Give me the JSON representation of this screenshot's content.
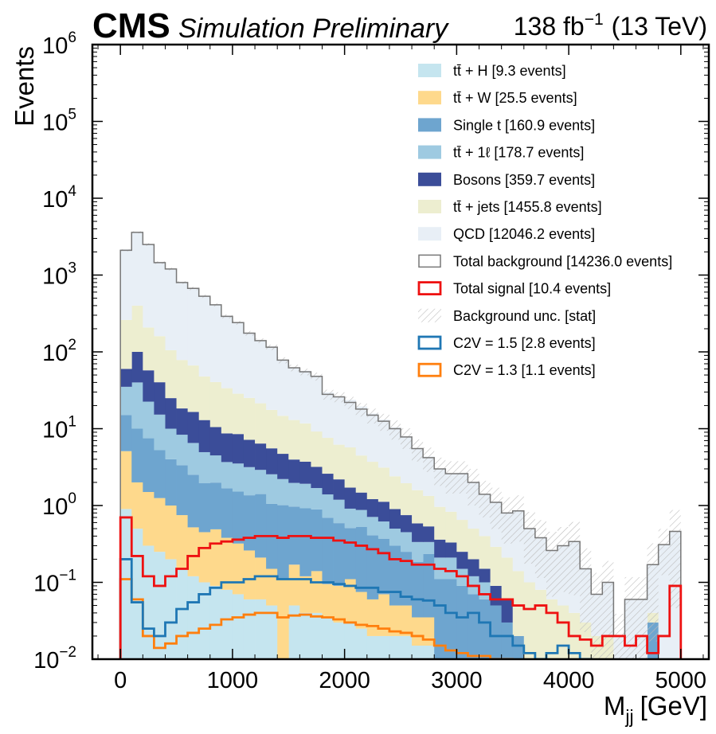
{
  "chart_data": {
    "type": "bar",
    "stacked": true,
    "experiment": "CMS",
    "subtitle": "Simulation Preliminary",
    "lumi": {
      "value": "138 fb",
      "exp": "−1",
      "energy": "(13 TeV)"
    },
    "ylabel": "Events",
    "xlabel": {
      "main": "M",
      "sub": "jj",
      "unit": "[GeV]"
    },
    "xlim": [
      -250,
      5250
    ],
    "ylim": [
      0.01,
      1000000
    ],
    "ylog": true,
    "xticks": [
      0,
      1000,
      2000,
      3000,
      4000,
      5000
    ],
    "yticks": [
      {
        "value": 0.01,
        "base": "10",
        "exp": "−2"
      },
      {
        "value": 0.1,
        "base": "10",
        "exp": "−1"
      },
      {
        "value": 1,
        "base": "10",
        "exp": "0"
      },
      {
        "value": 10,
        "base": "10",
        "exp": "1"
      },
      {
        "value": 100,
        "base": "10",
        "exp": "2"
      },
      {
        "value": 1000,
        "base": "10",
        "exp": "3"
      },
      {
        "value": 10000,
        "base": "10",
        "exp": "4"
      },
      {
        "value": 100000,
        "base": "10",
        "exp": "5"
      },
      {
        "value": 1000000,
        "base": "10",
        "exp": "6"
      }
    ],
    "bin_edges": [
      0,
      100,
      200,
      300,
      400,
      500,
      600,
      700,
      800,
      900,
      1000,
      1100,
      1200,
      1300,
      1400,
      1500,
      1600,
      1700,
      1800,
      1900,
      2000,
      2100,
      2200,
      2300,
      2400,
      2500,
      2600,
      2700,
      2800,
      2900,
      3000,
      3100,
      3200,
      3300,
      3400,
      3500,
      3600,
      3700,
      3800,
      3900,
      4000,
      4100,
      4200,
      4300,
      4400,
      4500,
      4600,
      4700,
      4800,
      4900,
      5000
    ],
    "stack": [
      {
        "name": "tt̄ + H [9.3 events]",
        "color": "#c5e5ef",
        "values": [
          0.9,
          0.5,
          0.3,
          0.25,
          0.2,
          0.15,
          0.12,
          0.1,
          0.09,
          0.08,
          0.07,
          0.06,
          0.06,
          0.05,
          0.01,
          0.05,
          0.04,
          0.04,
          0.035,
          0.03,
          0.03,
          0.025,
          0.02,
          0.02,
          0.02,
          0.02,
          0.015,
          0.015,
          0.01,
          0.01,
          0.01,
          0.01,
          0.01,
          0.01,
          0,
          0,
          0,
          0,
          0,
          0,
          0,
          0,
          0,
          0,
          0,
          0,
          0,
          0,
          0,
          0
        ]
      },
      {
        "name": "tt̄ + W [25.5 events]",
        "color": "#fed98c",
        "values": [
          4.2,
          1.5,
          1.2,
          1.0,
          0.8,
          0.6,
          0.4,
          0.35,
          0.4,
          0.3,
          0.25,
          0.2,
          0.15,
          0.1,
          0.1,
          0.12,
          0.08,
          0.1,
          0.06,
          0.06,
          0.08,
          0.05,
          0.04,
          0.05,
          0.03,
          0.03,
          0.02,
          0.02,
          0,
          0,
          0,
          0,
          0,
          0,
          0,
          0,
          0,
          0,
          0,
          0,
          0,
          0,
          0,
          0,
          0,
          0,
          0,
          0,
          0,
          0
        ]
      },
      {
        "name": "Single t [160.9 events]",
        "color": "#6ea5cf",
        "values": [
          10,
          8,
          6,
          4,
          3,
          2.6,
          2,
          1.5,
          1.5,
          1.3,
          1.2,
          1.1,
          1.2,
          0.9,
          0.9,
          0.8,
          0.8,
          0.75,
          0.6,
          0.5,
          0.4,
          0.45,
          0.35,
          0.3,
          0.25,
          0.2,
          0.15,
          0.2,
          0.1,
          0.1,
          0.08,
          0.06,
          0.05,
          0.04,
          0.03,
          0.02,
          0,
          0,
          0,
          0,
          0,
          0,
          0,
          0,
          0,
          0,
          0,
          0.03,
          0,
          0
        ]
      },
      {
        "name": "tt̄ + 1ℓ [178.7 events]",
        "color": "#9ecae1",
        "values": [
          20,
          30,
          15,
          10,
          6,
          5,
          4,
          3,
          2.5,
          2,
          2,
          1.8,
          1.5,
          1.5,
          1.2,
          1,
          1,
          0.8,
          0.7,
          0.6,
          0.4,
          0.35,
          0.3,
          0.25,
          0.2,
          0.2,
          0.15,
          0.1,
          0.1,
          0.1,
          0.06,
          0.05,
          0.04,
          0,
          0,
          0,
          0,
          0,
          0,
          0,
          0,
          0,
          0,
          0,
          0,
          0,
          0,
          0,
          0,
          0
        ]
      },
      {
        "name": "Bosons [359.7 events]",
        "color": "#3b4d99",
        "values": [
          25,
          60,
          35,
          25,
          15,
          10,
          10,
          8,
          6,
          5,
          5,
          4,
          3.5,
          3,
          2.5,
          2,
          1.8,
          1.5,
          1.2,
          1,
          0.8,
          0.6,
          0.5,
          0.5,
          0.4,
          0.3,
          0.25,
          0.2,
          0.15,
          0.12,
          0.1,
          0.08,
          0.05,
          0.04,
          0.03,
          0,
          0,
          0,
          0,
          0,
          0,
          0,
          0,
          0,
          0,
          0,
          0,
          0,
          0,
          0
        ]
      },
      {
        "name": "tt̄ + jets [1455.8 events]",
        "color": "#edeed0",
        "values": [
          200,
          300,
          150,
          120,
          80,
          60,
          50,
          35,
          30,
          25,
          20,
          18,
          15,
          12,
          10,
          9,
          8,
          6,
          5,
          4,
          4,
          3,
          2.5,
          2,
          1.5,
          1.2,
          1,
          0.8,
          0.6,
          0.5,
          0.4,
          0.3,
          0.25,
          0.2,
          0.15,
          0.12,
          0.1,
          0.08,
          0.06,
          0.05,
          0.04,
          0.03,
          0.02,
          0.02,
          0.01,
          0.01,
          0.01,
          0.01,
          0.01,
          0.01
        ]
      },
      {
        "name": "QCD [12046.2 events]",
        "color": "#e8eff6",
        "values": [
          1900,
          3200,
          2300,
          1300,
          1100,
          720,
          600,
          480,
          370,
          260,
          210,
          150,
          120,
          100,
          65,
          50,
          45,
          40,
          22,
          20,
          18,
          15,
          12,
          10,
          8,
          6,
          4,
          3,
          2,
          1.8,
          2,
          1.5,
          1,
          0.8,
          0.6,
          0.7,
          0.4,
          0.3,
          0.2,
          0.25,
          0.3,
          0.12,
          0.05,
          0.08,
          0.01,
          0.05,
          0.05,
          0.13,
          0.3,
          0.45
        ]
      }
    ],
    "total_background": [
      2100,
      3600,
      2500,
      1450,
      1200,
      800,
      670,
      530,
      410,
      290,
      240,
      175,
      140,
      115,
      78,
      62,
      55,
      48,
      28,
      26,
      22,
      18,
      15,
      12.5,
      10,
      7.8,
      5.5,
      4.2,
      3,
      2.6,
      2.6,
      2,
      1.4,
      1.1,
      0.8,
      0.85,
      0.5,
      0.38,
      0.26,
      0.3,
      0.34,
      0.15,
      0.07,
      0.1,
      0.02,
      0.06,
      0.06,
      0.17,
      0.31,
      0.46
    ],
    "background_unc": [
      0.03,
      0.03,
      0.04,
      0.04,
      0.04,
      0.04,
      0.05,
      0.05,
      0.05,
      0.06,
      0.06,
      0.07,
      0.07,
      0.08,
      0.09,
      0.1,
      0.1,
      0.12,
      0.15,
      0.15,
      0.18,
      0.2,
      0.22,
      0.25,
      0.28,
      0.3,
      0.32,
      0.35,
      0.4,
      0.45,
      0.45,
      0.5,
      0.5,
      0.55,
      0.6,
      0.6,
      0.65,
      0.7,
      0.75,
      0.75,
      0.8,
      0.85,
      0.9,
      0.9,
      0.95,
      0.95,
      0.95,
      0.9,
      0.6,
      0.9
    ],
    "total_signal": [
      0.7,
      0.22,
      0.12,
      0.09,
      0.12,
      0.15,
      0.22,
      0.28,
      0.32,
      0.34,
      0.36,
      0.38,
      0.4,
      0.4,
      0.38,
      0.4,
      0.4,
      0.38,
      0.38,
      0.35,
      0.33,
      0.3,
      0.27,
      0.24,
      0.2,
      0.19,
      0.17,
      0.17,
      0.15,
      0.14,
      0.12,
      0.09,
      0.07,
      0.06,
      0.06,
      0.05,
      0.045,
      0.05,
      0.04,
      0.03,
      0.02,
      0.018,
      0.015,
      0.02,
      0.02,
      0.015,
      0.02,
      0.012,
      0.02,
      0.09
    ],
    "signal_curves": [
      {
        "name": "C2V = 1.5 [2.8 events]",
        "color": "#1f77b4",
        "values": [
          0.2,
          0.055,
          0.025,
          0.02,
          0.03,
          0.045,
          0.055,
          0.07,
          0.085,
          0.1,
          0.1,
          0.11,
          0.12,
          0.12,
          0.11,
          0.11,
          0.11,
          0.1,
          0.1,
          0.095,
          0.09,
          0.085,
          0.085,
          0.075,
          0.075,
          0.065,
          0.06,
          0.058,
          0.05,
          0.04,
          0.035,
          0.04,
          0.03,
          0.02,
          0.02,
          0.015,
          0.012,
          0.01,
          0.012,
          0.015,
          0.012,
          0.01,
          0,
          0,
          0,
          0,
          0,
          0,
          0,
          0
        ]
      },
      {
        "name": "C2V = 1.3 [1.1 events]",
        "color": "#ff7f0e",
        "values": [
          0.11,
          0.06,
          0.02,
          0.014,
          0.016,
          0.02,
          0.022,
          0.025,
          0.028,
          0.033,
          0.035,
          0.038,
          0.04,
          0.04,
          0.035,
          0.037,
          0.038,
          0.036,
          0.035,
          0.033,
          0.03,
          0.028,
          0.027,
          0.025,
          0.023,
          0.022,
          0.02,
          0.018,
          0.015,
          0.013,
          0.012,
          0.011,
          0.011,
          0.01,
          0.01,
          0,
          0,
          0,
          0,
          0,
          0,
          0,
          0,
          0,
          0,
          0,
          0,
          0,
          0,
          0
        ]
      }
    ],
    "legend_position": "top-right",
    "legend_extra": {
      "total_background": "Total background [14236.0 events]",
      "total_signal": "Total signal [10.4 events]",
      "background_unc": "Background unc. [stat]"
    },
    "colors": {
      "total_background": "#777777",
      "total_signal": "#ee1111",
      "unc_hatch": "#bbbbbb"
    }
  }
}
